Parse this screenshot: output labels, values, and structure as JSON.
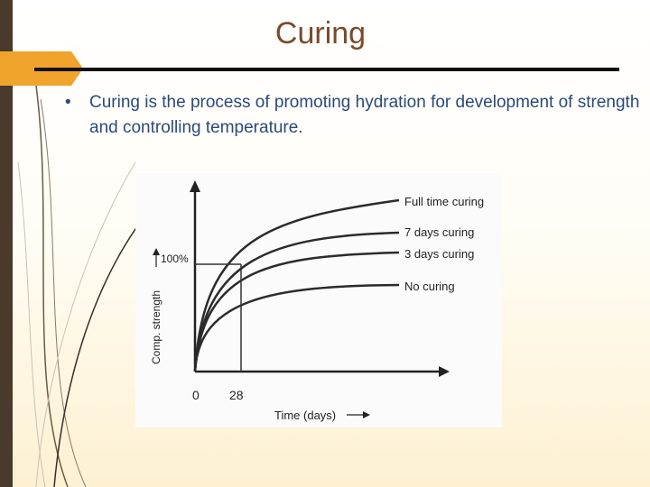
{
  "slide": {
    "title": "Curing",
    "bullet_marker": "•",
    "bullet_text": "Curing is the process of promoting hydration for development of strength and controlling temperature."
  },
  "colors": {
    "sidebar": "#4a3a2c",
    "accent_tab": "#f0a42b",
    "title": "#7a4a2a",
    "bullet": "#2a4a7a"
  },
  "chart_data": {
    "type": "line",
    "xlabel": "Time (days)",
    "ylabel": "Comp. strength",
    "x_ticks": [
      "0",
      "28"
    ],
    "y_reference_label": "100%",
    "series": [
      {
        "name": "Full time curing"
      },
      {
        "name": "7 days curing"
      },
      {
        "name": "3 days curing"
      },
      {
        "name": "No curing"
      }
    ],
    "grid": false
  }
}
